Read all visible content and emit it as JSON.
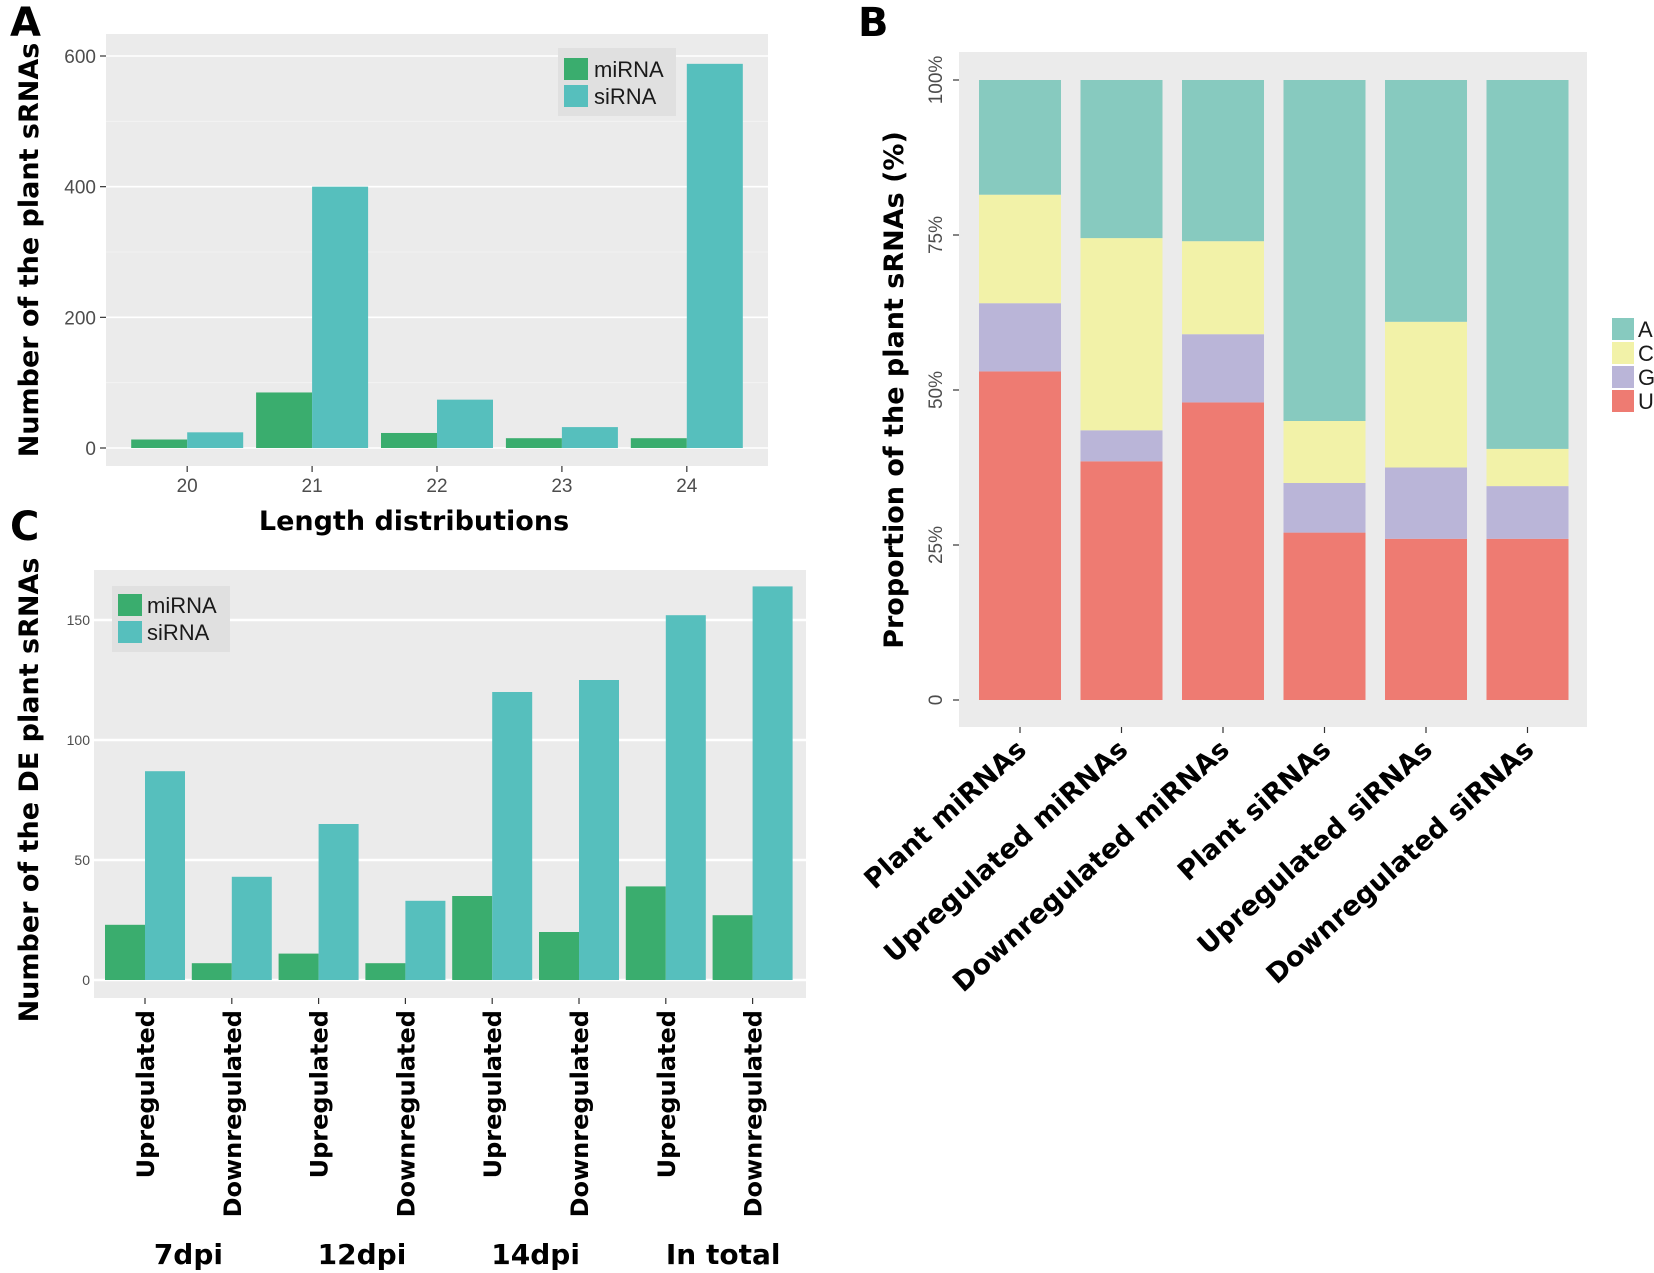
{
  "colors": {
    "panel_bg": "#ebebeb",
    "grid": "#ffffff",
    "mirna": "#3aad6e",
    "sirna": "#56bfbd",
    "base_A": "#87cabf",
    "base_C": "#f2f2a8",
    "base_G": "#bab5d8",
    "base_U": "#ee7b72"
  },
  "chart_data": [
    {
      "panel": "A",
      "type": "bar",
      "xlabel": "Length distributions",
      "ylabel": "Number of the plant sRNAs",
      "categories": [
        "20",
        "21",
        "22",
        "23",
        "24"
      ],
      "series": [
        {
          "name": "miRNA",
          "values": [
            13,
            85,
            23,
            15,
            15
          ]
        },
        {
          "name": "siRNA",
          "values": [
            24,
            400,
            74,
            32,
            588
          ]
        }
      ],
      "ylim": [
        0,
        600
      ],
      "yticks": [
        "0",
        "200",
        "400",
        "600"
      ],
      "legend": "top-right"
    },
    {
      "panel": "B",
      "type": "bar",
      "stacked": true,
      "ylabel": "Proportion of the plant sRNAs (%)",
      "categories": [
        "Plant miRNAs",
        "Upregulated miRNAs",
        "Downregulated miRNAs",
        "Plant siRNAs",
        "Upregulated siRNAs",
        "Downregulated siRNAs"
      ],
      "series": [
        {
          "name": "U",
          "values": [
            53,
            38.5,
            48,
            27,
            26,
            26
          ]
        },
        {
          "name": "G",
          "values": [
            11,
            5,
            11,
            8,
            11.5,
            8.5
          ]
        },
        {
          "name": "C",
          "values": [
            17.5,
            31,
            15,
            10,
            23.5,
            6
          ]
        },
        {
          "name": "A",
          "values": [
            18.5,
            25.5,
            26,
            55,
            39,
            59.5
          ]
        }
      ],
      "ylim": [
        0,
        100
      ],
      "yticks": [
        "0",
        "25%",
        "50%",
        "75%",
        "100%"
      ],
      "legend_labels": [
        "A",
        "C",
        "G",
        "U"
      ],
      "legend": "right"
    },
    {
      "panel": "C",
      "type": "bar",
      "ylabel": "Number of the DE plant sRNAs",
      "categories": [
        "Upregulated",
        "Downregulated",
        "Upregulated",
        "Downregulated",
        "Upregulated",
        "Downregulated",
        "Upregulated",
        "Downregulated"
      ],
      "groups": [
        "7dpi",
        "12dpi",
        "14dpi",
        "In total"
      ],
      "series": [
        {
          "name": "miRNA",
          "values": [
            23,
            7,
            11,
            7,
            35,
            20,
            39,
            27
          ]
        },
        {
          "name": "siRNA",
          "values": [
            87,
            43,
            65,
            33,
            120,
            125,
            152,
            164
          ]
        }
      ],
      "ylim": [
        0,
        170
      ],
      "yticks": [
        "0",
        "50",
        "100",
        "150"
      ],
      "legend": "top-left"
    }
  ]
}
